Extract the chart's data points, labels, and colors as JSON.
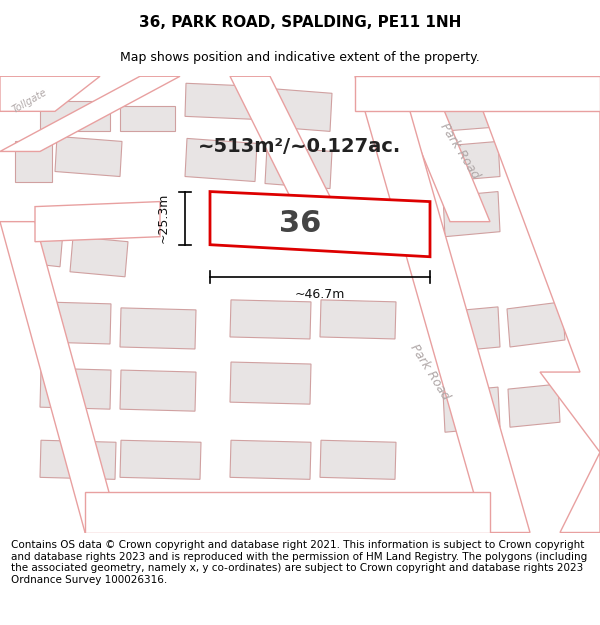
{
  "title": "36, PARK ROAD, SPALDING, PE11 1NH",
  "subtitle": "Map shows position and indicative extent of the property.",
  "footer": "Contains OS data © Crown copyright and database right 2021. This information is subject to Crown copyright and database rights 2023 and is reproduced with the permission of HM Land Registry. The polygons (including the associated geometry, namely x, y co-ordinates) are subject to Crown copyright and database rights 2023 Ordnance Survey 100026316.",
  "area_label": "~513m²/~0.127ac.",
  "width_label": "~46.7m",
  "height_label": "~25.3m",
  "number_label": "36",
  "map_bg": "#f7f4f4",
  "road_fill": "#ffffff",
  "road_stroke": "#e8a0a0",
  "road_stroke_light": "#f0c0c0",
  "plot_stroke": "#dd0000",
  "building_fill": "#e8e4e4",
  "building_stroke": "#d0a0a0",
  "title_fontsize": 11,
  "subtitle_fontsize": 9,
  "footer_fontsize": 7.5,
  "road_label_color": "#b0a8a8",
  "dim_lw": 1.2
}
